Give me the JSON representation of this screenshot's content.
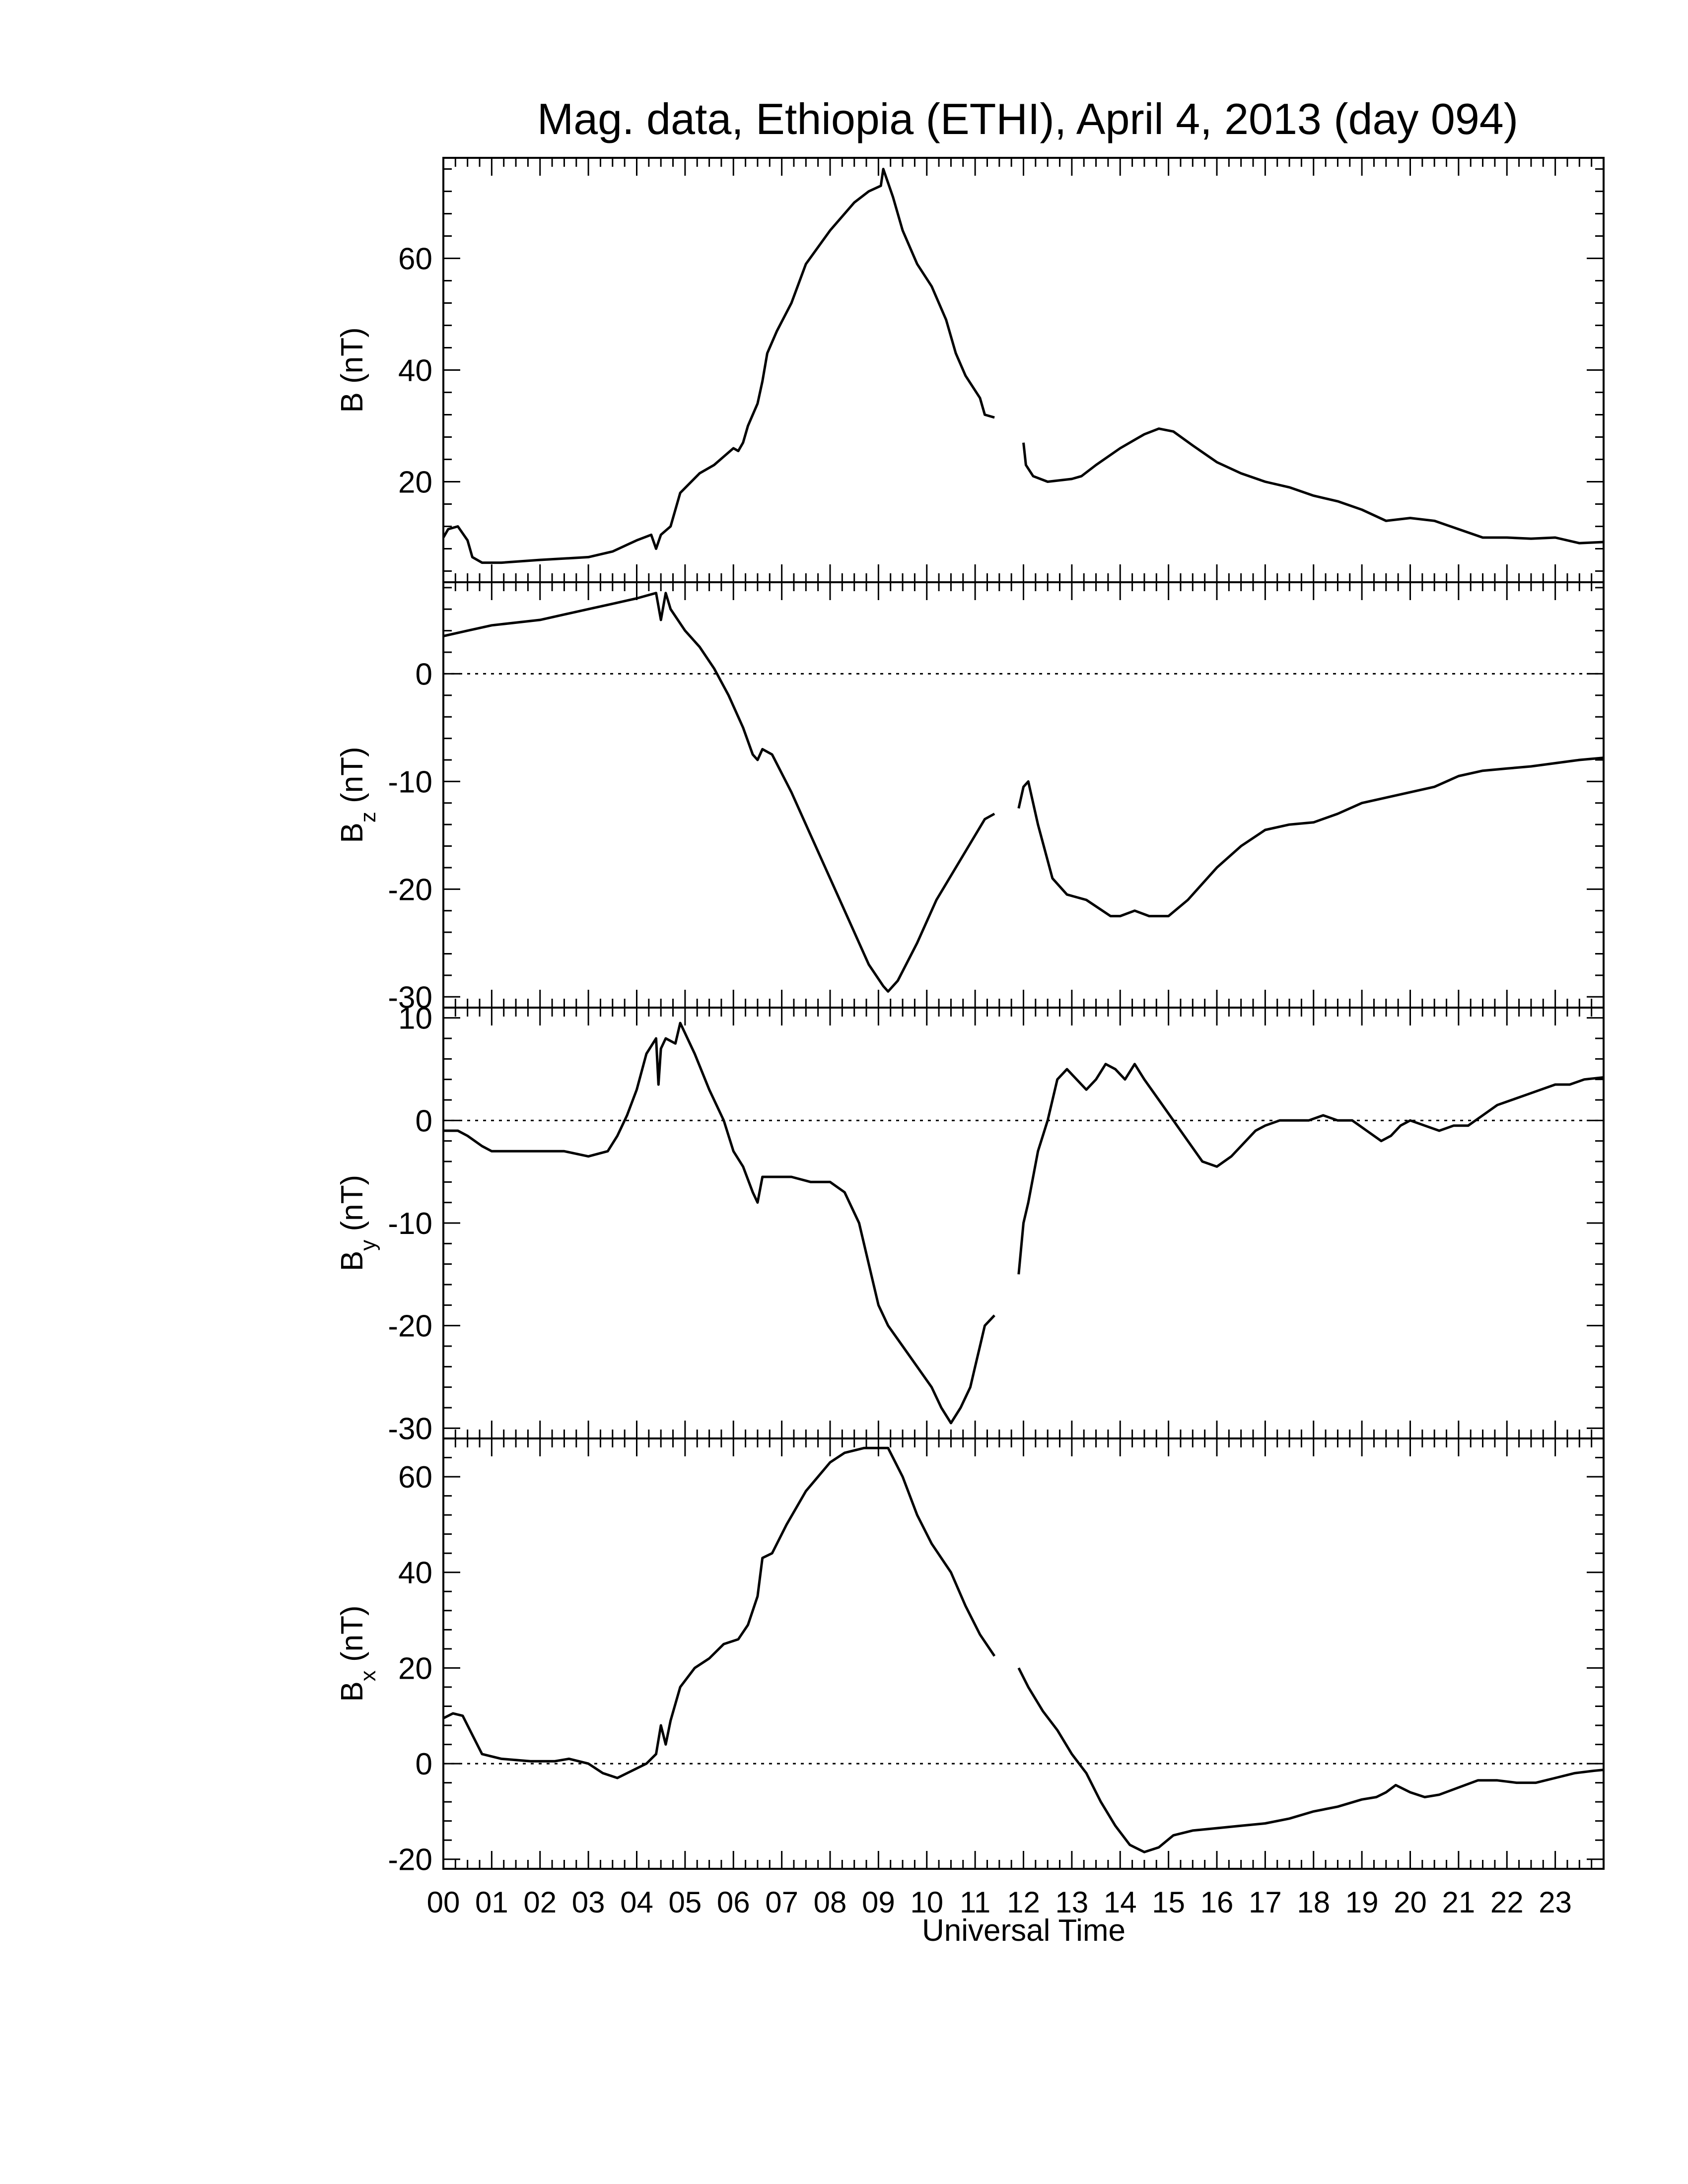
{
  "title": "Mag. data, Ethiopia (ETHI), April 4, 2013 (day 094)",
  "xlabel": "Universal Time",
  "xticks": [
    "00",
    "01",
    "02",
    "03",
    "04",
    "05",
    "06",
    "07",
    "08",
    "09",
    "10",
    "11",
    "12",
    "13",
    "14",
    "15",
    "16",
    "17",
    "18",
    "19",
    "20",
    "21",
    "22",
    "23"
  ],
  "chart_data": [
    {
      "type": "line",
      "name": "B",
      "ylabel": "B (nT)",
      "ylabel_main": "B",
      "ylabel_sub": "",
      "ylabel_unit": " (nT)",
      "ylim": [
        2,
        78
      ],
      "yticks": [
        20,
        40,
        60
      ],
      "zero_line": false,
      "x": [
        0,
        0.1,
        0.3,
        0.5,
        0.6,
        0.8,
        1.2,
        2,
        3,
        3.5,
        4,
        4.3,
        4.4,
        4.5,
        4.7,
        4.9,
        5.3,
        5.6,
        5.8,
        6,
        6.1,
        6.2,
        6.3,
        6.5,
        6.6,
        6.7,
        6.9,
        7.2,
        7.5,
        8,
        8.5,
        8.8,
        9.05,
        9.1,
        9.3,
        9.5,
        9.8,
        10.1,
        10.4,
        10.6,
        10.8,
        11.1,
        11.2,
        11.4
      ],
      "segments_break_after": [
        11.4
      ],
      "x2": [
        12,
        12.05,
        12.2,
        12.5,
        13,
        13.2,
        13.5,
        14,
        14.3,
        14.5,
        14.8,
        15.1,
        15.5,
        16,
        16.5,
        17,
        17.5,
        18,
        18.5,
        19,
        19.5,
        20,
        20.5,
        21,
        21.5,
        22,
        22.5,
        23,
        23.5,
        24
      ],
      "y": [
        10,
        11.5,
        12,
        9.5,
        6.5,
        5.5,
        5.5,
        6,
        6.5,
        7.5,
        9.5,
        10.5,
        8,
        10.5,
        12,
        18,
        21.5,
        23,
        24.5,
        26,
        25.5,
        27,
        30,
        34,
        38,
        43,
        47,
        52,
        59,
        65,
        70,
        72,
        73,
        76,
        71,
        65,
        59,
        55,
        49,
        43,
        39,
        35,
        32,
        31.5
      ],
      "y2": [
        27,
        23,
        21,
        20,
        20.5,
        21,
        23,
        26,
        27.5,
        28.5,
        29.5,
        29,
        26.5,
        23.5,
        21.5,
        20,
        19,
        17.5,
        16.5,
        15,
        13,
        13.5,
        13,
        11.5,
        10,
        10,
        9.8,
        10,
        9,
        9.2
      ]
    },
    {
      "type": "line",
      "name": "Bz",
      "ylabel": "Bz (nT)",
      "ylabel_main": "B",
      "ylabel_sub": "z",
      "ylabel_unit": " (nT)",
      "ylim": [
        -31,
        8.5
      ],
      "yticks": [
        -30,
        -20,
        -10,
        0
      ],
      "zero_line": true,
      "x": [
        0,
        0.5,
        1,
        2,
        3,
        3.5,
        4,
        4.4,
        4.5,
        4.6,
        4.7,
        5,
        5.3,
        5.6,
        5.9,
        6.2,
        6.4,
        6.5,
        6.6,
        6.8,
        7.2,
        7.6,
        8,
        8.4,
        8.8,
        9.1,
        9.2,
        9.4,
        9.8,
        10.2,
        10.6,
        11,
        11.2,
        11.4
      ],
      "segments_break_after": [
        11.4
      ],
      "x2": [
        11.9,
        12,
        12.1,
        12.3,
        12.6,
        12.9,
        13.3,
        13.8,
        14,
        14.3,
        14.6,
        15,
        15.4,
        16,
        16.5,
        17,
        17.5,
        18,
        18.5,
        19,
        19.5,
        20,
        20.5,
        21,
        21.5,
        22,
        22.5,
        23,
        23.5,
        24
      ],
      "y": [
        3.5,
        4,
        4.5,
        5,
        6,
        6.5,
        7,
        7.5,
        5,
        7.5,
        6,
        4,
        2.5,
        0.5,
        -2,
        -5,
        -7.5,
        -8,
        -7,
        -7.5,
        -11,
        -15,
        -19,
        -23,
        -27,
        -29,
        -29.5,
        -28.5,
        -25,
        -21,
        -18,
        -15,
        -13.5,
        -13
      ],
      "y2": [
        -12.5,
        -10.5,
        -10,
        -14,
        -19,
        -20.5,
        -21,
        -22.5,
        -22.5,
        -22,
        -22.5,
        -22.5,
        -21,
        -18,
        -16,
        -14.5,
        -14,
        -13.8,
        -13,
        -12,
        -11.5,
        -11,
        -10.5,
        -9.5,
        -9,
        -8.8,
        -8.6,
        -8.3,
        -8,
        -7.8
      ]
    },
    {
      "type": "line",
      "name": "By",
      "ylabel": "By (nT)",
      "ylabel_main": "B",
      "ylabel_sub": "y",
      "ylabel_unit": " (nT)",
      "ylim": [
        -31,
        11
      ],
      "yticks": [
        -30,
        -20,
        -10,
        0,
        10
      ],
      "zero_line": true,
      "x": [
        0,
        0.3,
        0.5,
        0.8,
        1,
        1.5,
        2,
        2.5,
        3,
        3.4,
        3.6,
        3.8,
        4,
        4.2,
        4.4,
        4.45,
        4.5,
        4.6,
        4.8,
        4.9,
        5,
        5.2,
        5.5,
        5.8,
        6,
        6.2,
        6.4,
        6.5,
        6.6,
        6.8,
        7.2,
        7.6,
        8,
        8.3,
        8.6,
        8.8,
        9,
        9.2,
        9.5,
        9.8,
        10.1,
        10.3,
        10.5,
        10.7,
        10.9,
        11,
        11.1,
        11.2,
        11.4
      ],
      "segments_break_after": [
        11.4
      ],
      "x2": [
        11.9,
        12,
        12.1,
        12.3,
        12.5,
        12.7,
        12.9,
        13.1,
        13.3,
        13.5,
        13.7,
        13.9,
        14.1,
        14.3,
        14.5,
        14.8,
        15.1,
        15.4,
        15.7,
        16,
        16.3,
        16.6,
        16.8,
        17,
        17.3,
        17.6,
        17.9,
        18.2,
        18.5,
        18.8,
        19.1,
        19.4,
        19.6,
        19.8,
        20,
        20.3,
        20.6,
        20.9,
        21.2,
        21.5,
        21.8,
        22.1,
        22.4,
        22.7,
        23,
        23.3,
        23.6,
        24
      ],
      "y": [
        -1,
        -1,
        -1.5,
        -2.5,
        -3,
        -3,
        -3,
        -3,
        -3.5,
        -3,
        -1.5,
        0.5,
        3,
        6.5,
        8,
        3.5,
        7,
        8,
        7.5,
        9.5,
        8.5,
        6.5,
        3,
        0,
        -3,
        -4.5,
        -7,
        -8,
        -5.5,
        -5.5,
        -5.5,
        -6,
        -6,
        -7,
        -10,
        -14,
        -18,
        -20,
        -22,
        -24,
        -26,
        -28,
        -29.5,
        -28,
        -26,
        -24,
        -22,
        -20,
        -19
      ],
      "y2": [
        -15,
        -10,
        -8,
        -3,
        0,
        4,
        5,
        4,
        3,
        4,
        5.5,
        5,
        4,
        5.5,
        4,
        2,
        0,
        -2,
        -4,
        -4.5,
        -3.5,
        -2,
        -1,
        -0.5,
        0,
        0,
        0,
        0.5,
        0,
        0,
        -1,
        -2,
        -1.5,
        -0.5,
        0,
        -0.5,
        -1,
        -0.5,
        -0.5,
        0.5,
        1.5,
        2,
        2.5,
        3,
        3.5,
        3.5,
        4,
        4.2
      ]
    },
    {
      "type": "line",
      "name": "Bx",
      "ylabel": "Bx (nT)",
      "ylabel_main": "B",
      "ylabel_sub": "x",
      "ylabel_unit": " (nT)",
      "ylim": [
        -22,
        68
      ],
      "yticks": [
        -20,
        0,
        20,
        40,
        60
      ],
      "zero_line": true,
      "x": [
        0,
        0.2,
        0.4,
        0.6,
        0.8,
        1.2,
        1.8,
        2.3,
        2.6,
        3,
        3.3,
        3.6,
        3.9,
        4.2,
        4.4,
        4.5,
        4.6,
        4.7,
        4.9,
        5.2,
        5.5,
        5.8,
        6.1,
        6.3,
        6.5,
        6.6,
        6.8,
        7.1,
        7.5,
        8,
        8.3,
        8.7,
        9,
        9.2,
        9.5,
        9.8,
        10.1,
        10.5,
        10.8,
        11.1,
        11.4
      ],
      "segments_break_after": [
        11.4
      ],
      "x2": [
        11.9,
        12.1,
        12.4,
        12.7,
        13,
        13.3,
        13.6,
        13.9,
        14.2,
        14.5,
        14.8,
        15.1,
        15.5,
        16,
        16.5,
        17,
        17.5,
        18,
        18.5,
        19,
        19.3,
        19.5,
        19.7,
        20,
        20.3,
        20.6,
        21,
        21.4,
        21.8,
        22.2,
        22.6,
        23,
        23.4,
        23.8,
        24
      ],
      "y": [
        9.5,
        10.5,
        10,
        6,
        2,
        1,
        0.5,
        0.5,
        1,
        0,
        -2,
        -3,
        -1.5,
        0,
        2,
        8,
        4,
        9,
        16,
        20,
        22,
        25,
        26,
        29,
        35,
        43,
        44,
        50,
        57,
        63,
        65,
        66,
        66,
        66,
        60,
        52,
        46,
        40,
        33,
        27,
        22.5
      ],
      "y2": [
        20,
        16,
        11,
        7,
        2,
        -2,
        -8,
        -13,
        -17,
        -18.5,
        -17.5,
        -15,
        -14,
        -13.5,
        -13,
        -12.5,
        -11.5,
        -10,
        -9,
        -7.5,
        -7,
        -6,
        -4.5,
        -6,
        -7,
        -6.5,
        -5,
        -3.5,
        -3.5,
        -4,
        -4,
        -3,
        -2,
        -1.5,
        -1.3
      ]
    }
  ]
}
